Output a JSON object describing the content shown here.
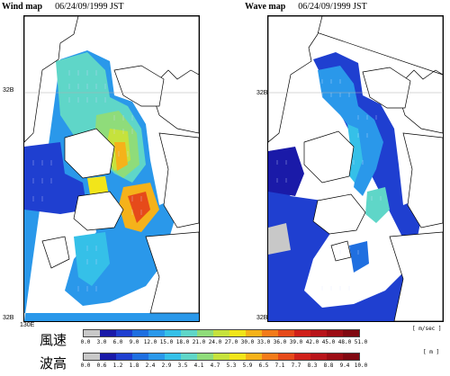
{
  "wind_panel": {
    "title": "Wind map",
    "timestamp": "06/24/09/1999 JST",
    "lat_top": "32B",
    "lat_bottom": "32B",
    "lon_label": "130E"
  },
  "wave_panel": {
    "title": "Wave map",
    "timestamp": "06/24/09/1999 JST",
    "lat_top": "32B",
    "lat_bottom": "32B"
  },
  "wind_legend": {
    "label": "風速",
    "unit": "m/sec",
    "ticks": [
      "0.0",
      "3.0",
      "6.0",
      "9.0",
      "12.0",
      "15.0",
      "18.0",
      "21.0",
      "24.0",
      "27.0",
      "30.0",
      "33.0",
      "36.0",
      "39.0",
      "42.0",
      "45.0",
      "48.0",
      "51.0"
    ]
  },
  "wave_legend": {
    "label": "波高",
    "unit": "m",
    "ticks": [
      "0.0",
      "0.6",
      "1.2",
      "1.8",
      "2.4",
      "2.9",
      "3.5",
      "4.1",
      "4.7",
      "5.3",
      "5.9",
      "6.5",
      "7.1",
      "7.7",
      "8.3",
      "8.8",
      "9.4",
      "10.0"
    ]
  },
  "colors": {
    "scale": [
      "#c8c8c8",
      "#1a1aa8",
      "#1f3fd0",
      "#1f6fe0",
      "#2a98ea",
      "#35c0e8",
      "#5fd6c8",
      "#8fdc7a",
      "#c6e23c",
      "#f2e51a",
      "#f5b21a",
      "#f37b1a",
      "#e64a1a",
      "#d0201a",
      "#b8141a",
      "#9c0c14",
      "#800810"
    ],
    "land_outline": "#000000",
    "grid_line": "#b0b0b0"
  }
}
